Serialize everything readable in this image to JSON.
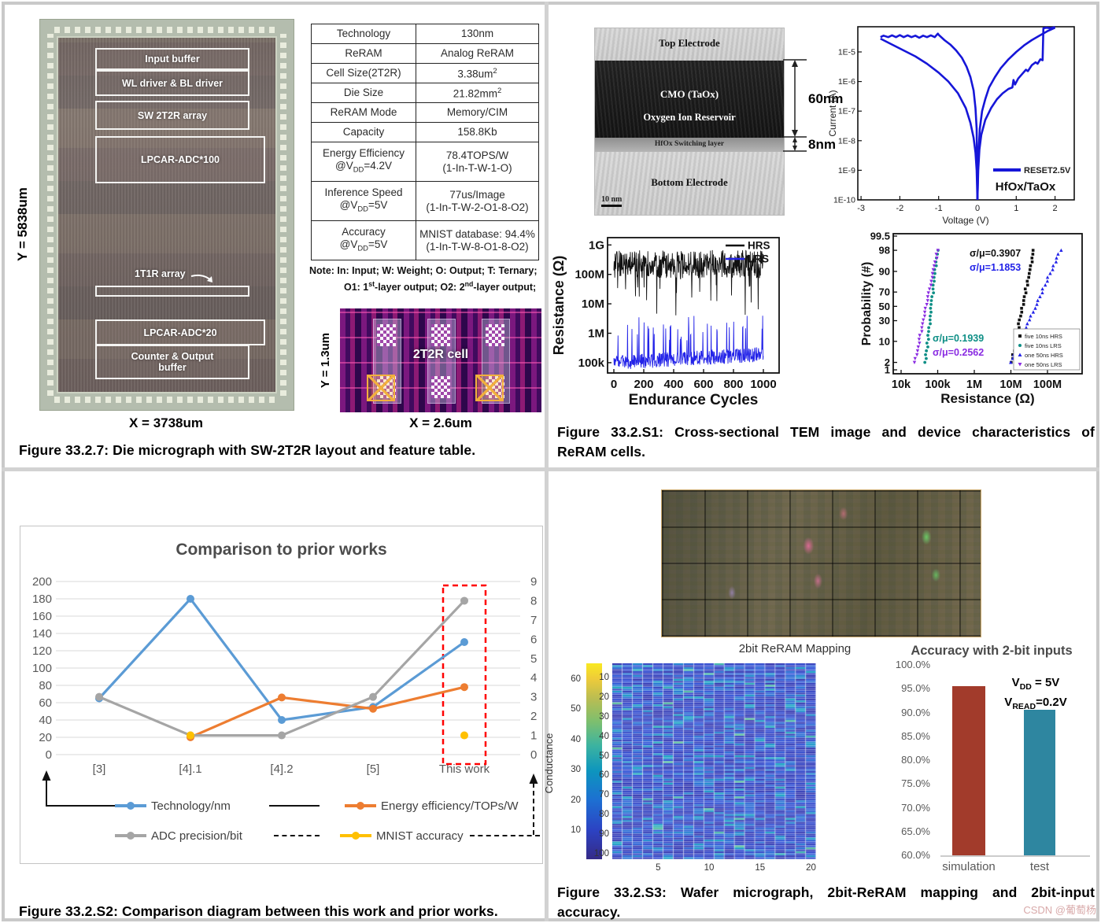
{
  "figure7": {
    "caption": "Figure 33.2.7: Die micrograph with SW-2T2R layout and feature table.",
    "die": {
      "y_dim": "Y = 5838um",
      "x_dim": "X = 3738um",
      "blocks": {
        "input_buffer": "Input buffer",
        "wl_bl_driver": "WL driver & BL driver",
        "sw_2t2r_array": "SW 2T2R array",
        "lpcar_adc_100": "LPCAR-ADC*100",
        "t1r_array": "1T1R array",
        "lpcar_adc_20": "LPCAR-ADC*20",
        "counter_output_line1": "Counter & Output",
        "counter_output_line2": "buffer"
      }
    },
    "feature_table": {
      "rows": [
        {
          "h": 25,
          "label": [
            [
              "Technology"
            ]
          ],
          "value": [
            [
              "130nm"
            ]
          ]
        },
        {
          "h": 25,
          "label": [
            [
              "ReRAM"
            ]
          ],
          "value": [
            [
              "Analog ReRAM"
            ]
          ]
        },
        {
          "h": 25,
          "label": [
            [
              "Cell Size(2T2R)"
            ]
          ],
          "value": [
            [
              "3.38um",
              {
                "sup": "2"
              }
            ]
          ]
        },
        {
          "h": 25,
          "label": [
            [
              "Die Size"
            ]
          ],
          "value": [
            [
              "21.82mm",
              {
                "sup": "2"
              }
            ]
          ]
        },
        {
          "h": 25,
          "label": [
            [
              "ReRAM Mode"
            ]
          ],
          "value": [
            [
              "Memory/CIM"
            ]
          ]
        },
        {
          "h": 25,
          "label": [
            [
              "Capacity"
            ]
          ],
          "value": [
            [
              "158.8Kb"
            ]
          ]
        },
        {
          "h": 50,
          "label": [
            [
              "Energy Efficiency"
            ],
            [
              "@V",
              {
                "sub": "DD"
              },
              "=4.2V"
            ]
          ],
          "value": [
            [
              "78.4TOPS/W"
            ],
            [
              "(1-In-T-W-1-O)"
            ]
          ]
        },
        {
          "h": 50,
          "label": [
            [
              "Inference Speed"
            ],
            [
              "@V",
              {
                "sub": "DD"
              },
              "=5V"
            ]
          ],
          "value": [
            [
              "77us/Image"
            ],
            [
              "(1-In-T-W-2-O1-8-O2)"
            ]
          ]
        },
        {
          "h": 50,
          "label": [
            [
              "Accuracy"
            ],
            [
              "@V",
              {
                "sub": "DD"
              },
              "=5V"
            ]
          ],
          "value": [
            [
              "MNIST database: 94.4%"
            ],
            [
              "(1-In-T-W-8-O1-8-O2)"
            ]
          ]
        }
      ]
    },
    "note_lines": [
      [
        "Note:  In: Input; W: Weight; O: Output; T: Ternary;"
      ],
      [
        "O1: 1",
        {
          "sup": "st"
        },
        "-layer output; O2: 2",
        {
          "sup": "nd"
        },
        "-layer output;"
      ]
    ],
    "cell_layout": {
      "label": "2T2R cell",
      "x_dim": "X = 2.6um",
      "y_dim": "Y = 1.3um"
    }
  },
  "figureS1": {
    "caption_line1": "Figure 33.2.S1: Cross-sectional TEM image and device characteristics of",
    "caption_line2": "ReRAM cells.",
    "tem": {
      "top_electrode": "Top Electrode",
      "cmo": "CMO (TaOx)",
      "reservoir": "Oxygen Ion Reservoir",
      "switching": "HfOx Switching layer",
      "bottom_electrode": "Bottom Electrode",
      "scale_bar": "10 nm",
      "dim_60nm": "60nm",
      "dim_8nm": "8nm"
    },
    "iv_curve": {
      "type": "line",
      "xlabel": "Voltage (V)",
      "ylabel": "Current (A)",
      "x_ticks": [
        -3,
        -2,
        -1,
        0,
        1,
        2
      ],
      "y_tick_labels": [
        "1E-5",
        "1E-6",
        "1E-7",
        "1E-8",
        "1E-9",
        "1E-10"
      ],
      "legend_label": "RESET2.5V",
      "material_label": "HfOx/TaOx",
      "color": "#1616d8",
      "branches": [
        [
          [
            -2.5,
            -4.5
          ],
          [
            -2.42,
            -4.45
          ],
          [
            -2.3,
            -4.5
          ],
          [
            -2.2,
            -4.44
          ],
          [
            -2.1,
            -4.5
          ],
          [
            -2.0,
            -4.43
          ],
          [
            -1.9,
            -4.5
          ],
          [
            -1.8,
            -4.44
          ],
          [
            -1.7,
            -4.5
          ],
          [
            -1.6,
            -4.45
          ],
          [
            -1.5,
            -4.52
          ],
          [
            -1.4,
            -4.45
          ],
          [
            -1.3,
            -4.5
          ],
          [
            -1.2,
            -4.44
          ],
          [
            -1.1,
            -4.5
          ],
          [
            -1.02,
            -4.38
          ],
          [
            -1.0,
            -4.42
          ],
          [
            -0.85,
            -4.6
          ],
          [
            -0.7,
            -4.75
          ],
          [
            -0.55,
            -4.95
          ],
          [
            -0.4,
            -5.2
          ],
          [
            -0.28,
            -5.5
          ],
          [
            -0.18,
            -5.85
          ],
          [
            -0.1,
            -6.3
          ],
          [
            -0.05,
            -6.9
          ],
          [
            -0.02,
            -7.6
          ],
          [
            0,
            -10
          ]
        ],
        [
          [
            -2.5,
            -4.55
          ],
          [
            -2.2,
            -4.75
          ],
          [
            -1.9,
            -4.95
          ],
          [
            -1.6,
            -5.15
          ],
          [
            -1.3,
            -5.4
          ],
          [
            -1.0,
            -5.7
          ],
          [
            -0.75,
            -6.0
          ],
          [
            -0.5,
            -6.4
          ],
          [
            -0.3,
            -6.9
          ],
          [
            -0.18,
            -7.4
          ],
          [
            -0.1,
            -7.9
          ],
          [
            -0.05,
            -8.4
          ],
          [
            -0.02,
            -9.0
          ],
          [
            0,
            -10
          ]
        ],
        [
          [
            0,
            -10
          ],
          [
            0.02,
            -9.0
          ],
          [
            0.05,
            -8.3
          ],
          [
            0.1,
            -7.8
          ],
          [
            0.2,
            -7.3
          ],
          [
            0.35,
            -6.9
          ],
          [
            0.5,
            -6.6
          ],
          [
            0.65,
            -6.4
          ],
          [
            0.8,
            -6.25
          ],
          [
            0.9,
            -6.2
          ],
          [
            0.93,
            -5.95
          ],
          [
            0.97,
            -6.1
          ],
          [
            1.05,
            -5.9
          ],
          [
            1.15,
            -5.75
          ],
          [
            1.25,
            -5.6
          ],
          [
            1.3,
            -5.65
          ],
          [
            1.4,
            -5.45
          ],
          [
            1.5,
            -5.35
          ],
          [
            1.55,
            -5.4
          ],
          [
            1.62,
            -5.25
          ],
          [
            1.68,
            -5.28
          ],
          [
            1.7,
            -4.2
          ],
          [
            1.78,
            -4.18
          ],
          [
            1.88,
            -4.2
          ],
          [
            2.0,
            -4.16
          ]
        ],
        [
          [
            2.0,
            -4.18
          ],
          [
            1.8,
            -4.3
          ],
          [
            1.6,
            -4.45
          ],
          [
            1.4,
            -4.6
          ],
          [
            1.2,
            -4.78
          ],
          [
            1.0,
            -5.0
          ],
          [
            0.8,
            -5.25
          ],
          [
            0.6,
            -5.55
          ],
          [
            0.45,
            -5.85
          ],
          [
            0.3,
            -6.2
          ],
          [
            0.2,
            -6.6
          ],
          [
            0.12,
            -7.0
          ],
          [
            0.06,
            -7.6
          ],
          [
            0.02,
            -8.6
          ],
          [
            0,
            -10
          ]
        ]
      ]
    },
    "endurance": {
      "type": "line",
      "xlabel": "Endurance  Cycles",
      "ylabel": "Resistance (Ω)",
      "x_ticks": [
        0,
        200,
        400,
        600,
        800,
        1000
      ],
      "y_tick_labels": [
        "1G",
        "100M",
        "10M",
        "1M",
        "100k"
      ],
      "series": [
        {
          "name": "HRS",
          "color": "#111111",
          "center_log": 8.35,
          "spread": 0.95,
          "dip": -1.1,
          "dip_p": 0.05
        },
        {
          "name": "LRS",
          "color": "#2323e8",
          "center_log": 5.0,
          "spread": 0.5,
          "dip": 1.1,
          "dip_p": 0.07
        }
      ]
    },
    "probability": {
      "type": "scatter",
      "xlabel": "Resistance (Ω)",
      "ylabel": "Probability (#)",
      "x_tick_labels": [
        "10k",
        "100k",
        "1M",
        "10M",
        "100M"
      ],
      "y_ticks": [
        99.5,
        98,
        90,
        70,
        50,
        30,
        10,
        2,
        1
      ],
      "annotations": [
        {
          "text": "σ/μ=0.3907",
          "color": "#111111"
        },
        {
          "text": "σ/μ=1.1853",
          "color": "#2323e8"
        },
        {
          "text": "σ/μ=0.1939",
          "color": "#0e8f86"
        },
        {
          "text": "σ/μ=0.2562",
          "color": "#8a2be2"
        }
      ],
      "series": [
        {
          "name": "five 10ns HRS",
          "color": "#111111",
          "marker": "square",
          "logx_p2": 7.02,
          "logx_p98": 7.62
        },
        {
          "name": "five 10ns LRS",
          "color": "#0e8f86",
          "marker": "circle",
          "logx_p2": 4.66,
          "logx_p98": 5.0
        },
        {
          "name": "one 50ns HRS",
          "color": "#2323e8",
          "marker": "triangle",
          "logx_p2": 7.0,
          "logx_p98": 8.35
        },
        {
          "name": "one 50ns LRS",
          "color": "#8a2be2",
          "marker": "triangle-down",
          "logx_p2": 4.38,
          "logx_p98": 5.0
        }
      ]
    }
  },
  "figureS2": {
    "caption": "Figure 33.2.S2: Comparison diagram between this work and prior works.",
    "chart": {
      "type": "line",
      "title": "Comparison to prior works",
      "categories": [
        "[3]",
        "[4].1",
        "[4].2",
        "[5]",
        "This work"
      ],
      "left_axis": {
        "min": 0,
        "max": 200,
        "step": 20
      },
      "right_axis": {
        "min": 0,
        "max": 9,
        "step": 1
      },
      "series": [
        {
          "name": "Technology/nm",
          "color": "#5b9bd5",
          "axis": "left",
          "values": [
            65,
            180,
            40,
            55,
            130
          ]
        },
        {
          "name": "Energy efficiency/TOPs/W",
          "color": "#ed7d31",
          "axis": "left",
          "values": [
            null,
            20,
            66,
            53,
            78
          ]
        },
        {
          "name": "ADC precision/bit",
          "color": "#a5a5a5",
          "axis": "right",
          "values": [
            3,
            1,
            1,
            3,
            8
          ]
        },
        {
          "name": "MNIST accuracy",
          "color": "#ffc000",
          "axis": "right",
          "values": [
            null,
            1,
            null,
            null,
            1
          ],
          "dots_only": true
        }
      ],
      "highlight_category": "This work",
      "highlight_color": "#ff0000"
    }
  },
  "figureS3": {
    "caption_line1": "Figure 33.2.S3: Wafer micrograph, 2bit-ReRAM mapping and 2bit-input",
    "caption_line2": "accuracy.",
    "watermark": "CSDN @葡萄杨",
    "mapping": {
      "type": "heatmap",
      "title": "2bit ReRAM Mapping",
      "colorbar_label": "Conductance",
      "colorbar_ticks": [
        60,
        50,
        40,
        30,
        20,
        10
      ],
      "row_ticks": [
        10,
        20,
        30,
        40,
        50,
        60,
        70,
        80,
        90,
        100
      ],
      "col_ticks": [
        5,
        10,
        15,
        20
      ],
      "rows": 100,
      "cols": 20,
      "value_max": 65,
      "level_mix": [
        [
          0.62,
          3,
          9
        ],
        [
          0.88,
          10,
          18
        ],
        [
          0.97,
          20,
          30
        ],
        [
          1.0,
          28,
          40
        ]
      ]
    },
    "accuracy": {
      "type": "bar",
      "title": "Accuracy with 2-bit inputs",
      "categories": [
        "simulation",
        "test"
      ],
      "values": [
        95.6,
        90.5
      ],
      "colors": [
        "#a23b2b",
        "#2e86a0"
      ],
      "ylim": [
        60,
        100
      ],
      "y_tick_labels": [
        "100.0%",
        "95.0%",
        "90.0%",
        "85.0%",
        "80.0%",
        "75.0%",
        "70.0%",
        "65.0%",
        "60.0%"
      ],
      "annotation_lines": [
        [
          "V",
          {
            "sub": "DD"
          },
          " = 5V"
        ],
        [
          "V",
          {
            "sub": "READ"
          },
          "=0.2V"
        ]
      ]
    }
  }
}
